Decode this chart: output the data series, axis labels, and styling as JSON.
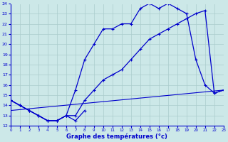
{
  "xlabel": "Graphe des températures (°c)",
  "bg_color": "#cce8e8",
  "line_color": "#0000cc",
  "grid_color": "#aacccc",
  "ylim": [
    12,
    24
  ],
  "xlim": [
    0,
    23
  ],
  "yticks": [
    12,
    13,
    14,
    15,
    16,
    17,
    18,
    19,
    20,
    21,
    22,
    23,
    24
  ],
  "xticks": [
    0,
    1,
    2,
    3,
    4,
    5,
    6,
    7,
    8,
    9,
    10,
    11,
    12,
    13,
    14,
    15,
    16,
    17,
    18,
    19,
    20,
    21,
    22,
    23
  ],
  "curve_main_x": [
    0,
    1,
    2,
    3,
    4,
    5,
    6,
    7,
    8,
    9,
    10,
    11,
    12,
    13,
    14,
    15,
    16,
    17,
    18,
    19,
    20,
    21,
    22,
    23
  ],
  "curve_main_y": [
    14.5,
    14.0,
    13.5,
    13.0,
    12.5,
    12.5,
    13.0,
    15.5,
    18.5,
    20.0,
    21.5,
    21.5,
    22.0,
    22.0,
    23.5,
    24.0,
    23.5,
    24.0,
    23.5,
    23.0,
    18.5,
    16.0,
    15.2,
    15.5
  ],
  "curve_smooth_x": [
    0,
    1,
    2,
    3,
    4,
    5,
    6,
    7,
    8,
    9,
    10,
    11,
    12,
    13,
    14,
    15,
    16,
    17,
    18,
    19,
    20,
    21,
    22,
    23
  ],
  "curve_smooth_y": [
    14.5,
    14.0,
    13.5,
    13.0,
    12.5,
    12.5,
    13.0,
    13.0,
    14.5,
    15.5,
    16.5,
    17.0,
    17.5,
    18.5,
    19.5,
    20.5,
    21.0,
    21.5,
    22.0,
    22.5,
    23.0,
    23.3,
    15.2,
    15.5
  ],
  "curve_low_x": [
    0,
    1,
    2,
    3,
    4,
    5,
    6,
    7,
    8
  ],
  "curve_low_y": [
    14.5,
    14.0,
    13.5,
    13.0,
    12.5,
    12.5,
    13.0,
    12.5,
    13.5
  ],
  "trend_x": [
    0,
    23
  ],
  "trend_y": [
    13.5,
    15.5
  ]
}
